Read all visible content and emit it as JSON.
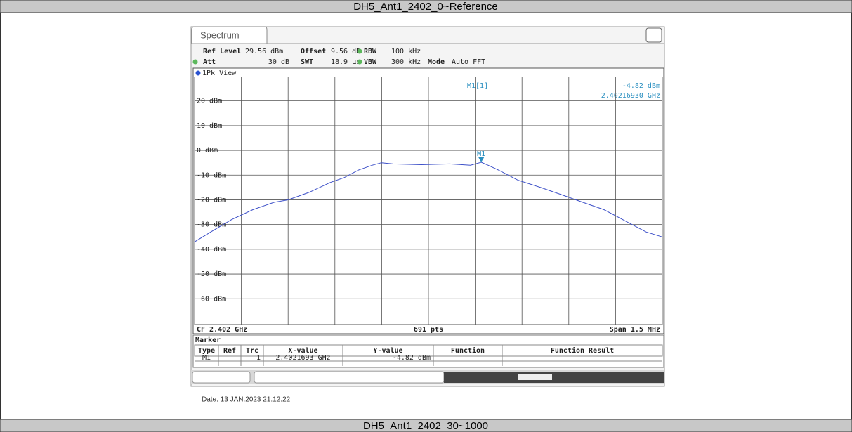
{
  "header": {
    "title": "DH5_Ant1_2402_0~Reference"
  },
  "footer": {
    "title": "DH5_Ant1_2402_30~1000"
  },
  "analyzer": {
    "tab": "Spectrum",
    "settings": [
      {
        "label": "Ref Level",
        "value": "29.56 dBm"
      },
      {
        "label": "Offset",
        "value": "9.56 dB"
      },
      {
        "label": "RBW",
        "value": "100 kHz"
      },
      {
        "label": "Att",
        "value": "30 dB"
      },
      {
        "label": "SWT",
        "value": "18.9 µs"
      },
      {
        "label": "VBW",
        "value": "300 kHz"
      },
      {
        "label": "Mode",
        "value": "Auto FFT"
      }
    ],
    "view": "1Pk View",
    "marker_readout": {
      "name": "M1[1]",
      "level": "-4.82 dBm",
      "frequency": "2.40216930 GHz"
    },
    "status": {
      "center_frequency": "CF 2.402 GHz",
      "points": "691 pts",
      "span": "Span 1.5 MHz"
    },
    "marker_table": {
      "title": "Marker",
      "columns": [
        "Type",
        "Ref",
        "Trc",
        "X-value",
        "Y-value",
        "Function",
        "Function Result"
      ],
      "rows": [
        {
          "type": "M1",
          "trc": "1",
          "x_value": "2.4021693 GHz",
          "y_value": "-4.82 dBm"
        }
      ]
    }
  },
  "date": "Date: 13 JAN.2023 21:12:22",
  "chart_data": {
    "type": "line",
    "color": "#3d50c8",
    "x": [
      2.40125,
      2.401302,
      2.401369,
      2.401437,
      2.401505,
      2.40155,
      2.401617,
      2.401685,
      2.40173,
      2.401775,
      2.40182,
      2.401849,
      2.401887,
      2.401977,
      2.402068,
      2.402135,
      2.4021693,
      2.402191,
      2.402225,
      2.402286,
      2.40236,
      2.402428,
      2.402495,
      2.402563,
      2.402608,
      2.402653,
      2.402698,
      2.40275
    ],
    "values": [
      -37,
      -33,
      -28,
      -24,
      -21,
      -20,
      -17,
      -13,
      -11,
      -8,
      -6,
      -5,
      -5.5,
      -5.8,
      -5.5,
      -6,
      -4.82,
      -6,
      -8,
      -12,
      -15,
      -18,
      -21,
      -24,
      -27,
      -30,
      -33,
      -35
    ],
    "markers": [
      {
        "label": "M1",
        "x": 2.4021693,
        "y": -4.82
      }
    ],
    "xlim": [
      2.40125,
      2.40275
    ],
    "xticks": [
      2.40125,
      2.4014,
      2.40155,
      2.4017,
      2.40185,
      2.402,
      2.40215,
      2.4023,
      2.40245,
      2.4026,
      2.40275
    ],
    "ylim": [
      -70.44,
      29.56
    ],
    "yticks": [
      {
        "value": 20,
        "label": "20 dBm"
      },
      {
        "value": 10,
        "label": "10 dBm"
      },
      {
        "value": 0,
        "label": "0 dBm"
      },
      {
        "value": -10,
        "label": "-10 dBm"
      },
      {
        "value": -20,
        "label": "-20 dBm"
      },
      {
        "value": -30,
        "label": "-30 dBm"
      },
      {
        "value": -40,
        "label": "-40 dBm"
      },
      {
        "value": -50,
        "label": "-50 dBm"
      },
      {
        "value": -60,
        "label": "-60 dBm"
      }
    ],
    "grid": true
  }
}
